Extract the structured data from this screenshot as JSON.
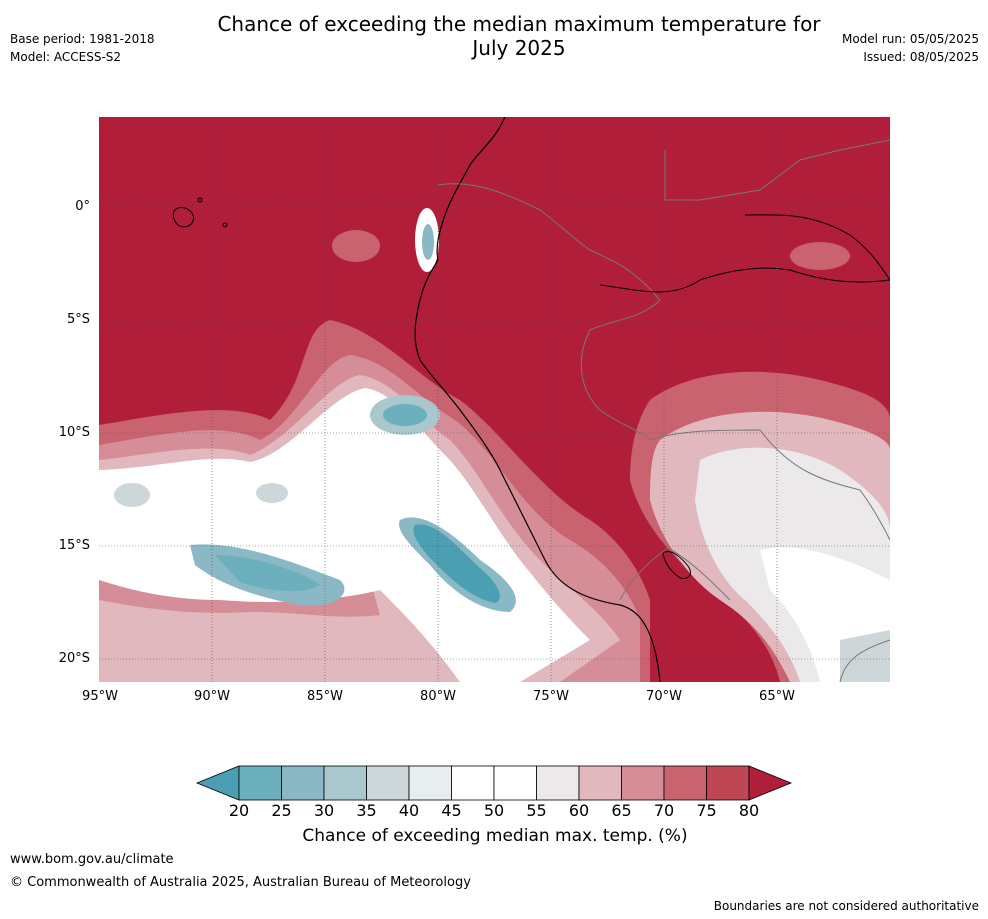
{
  "title_line1": "Chance of exceeding the median maximum temperature for",
  "title_line2": "July 2025",
  "meta_left": {
    "base_period": "Base period: 1981-2018",
    "model": "Model: ACCESS-S2"
  },
  "meta_right": {
    "model_run": "Model run: 05/05/2025",
    "issued": "Issued: 08/05/2025"
  },
  "lat_labels": [
    "0°",
    "5°S",
    "10°S",
    "15°S",
    "20°S"
  ],
  "lon_labels": [
    "95°W",
    "90°W",
    "85°W",
    "80°W",
    "75°W",
    "70°W",
    "65°W"
  ],
  "colorbar": {
    "ticks": [
      "20",
      "25",
      "30",
      "35",
      "40",
      "45",
      "50",
      "55",
      "60",
      "65",
      "70",
      "75",
      "80"
    ],
    "colors": [
      "#4aa0b2",
      "#6cb0bd",
      "#8ab8c4",
      "#a9c7cc",
      "#cdd7da",
      "#e8eef0",
      "#ffffff",
      "#ffffff",
      "#ebe9e9",
      "#e0b8bd",
      "#d58d97",
      "#c96370",
      "#be4655",
      "#b01e3a"
    ],
    "label": "Chance of exceeding median max. temp. (%)"
  },
  "footer": {
    "url": "www.bom.gov.au/climate",
    "copyright": "© Commonwealth of Australia 2025, Australian Bureau of Meteorology",
    "note": "Boundaries are not considered authoritative"
  }
}
